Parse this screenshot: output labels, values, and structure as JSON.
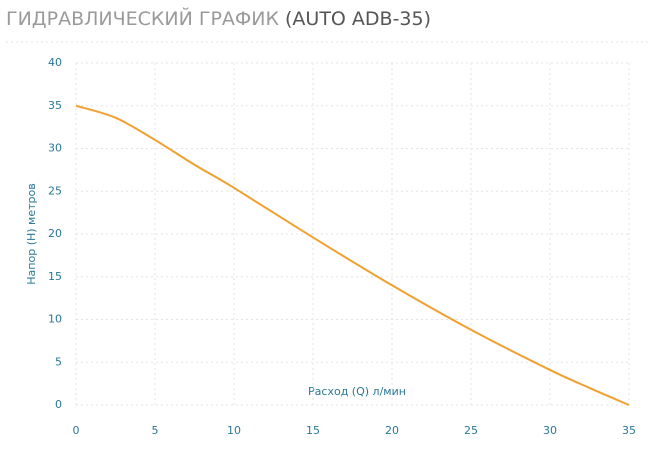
{
  "chart_data": {
    "type": "line",
    "title": "ГИДРАВЛИЧЕСКИЙ ГРАФИК",
    "model": "(AUTO ADB-35)",
    "x_label": "Расход (Q) л/мин",
    "y_label": "Напор (H) метров",
    "x": [
      0,
      2.5,
      5,
      7.5,
      10,
      15,
      20,
      25,
      30,
      32.5,
      35
    ],
    "series": [
      {
        "name": "AUTO ADB-35",
        "color": "#f0a030",
        "values": [
          35,
          33.6,
          31,
          28.1,
          25.4,
          19.6,
          14,
          8.8,
          4.1,
          2,
          0
        ]
      }
    ],
    "xlim": [
      0,
      35
    ],
    "xticks": [
      0,
      5,
      10,
      15,
      20,
      25,
      30,
      35
    ],
    "ylim": [
      0,
      40
    ],
    "yticks": [
      0,
      5,
      10,
      15,
      20,
      25,
      30,
      35,
      40
    ],
    "grid": true
  }
}
